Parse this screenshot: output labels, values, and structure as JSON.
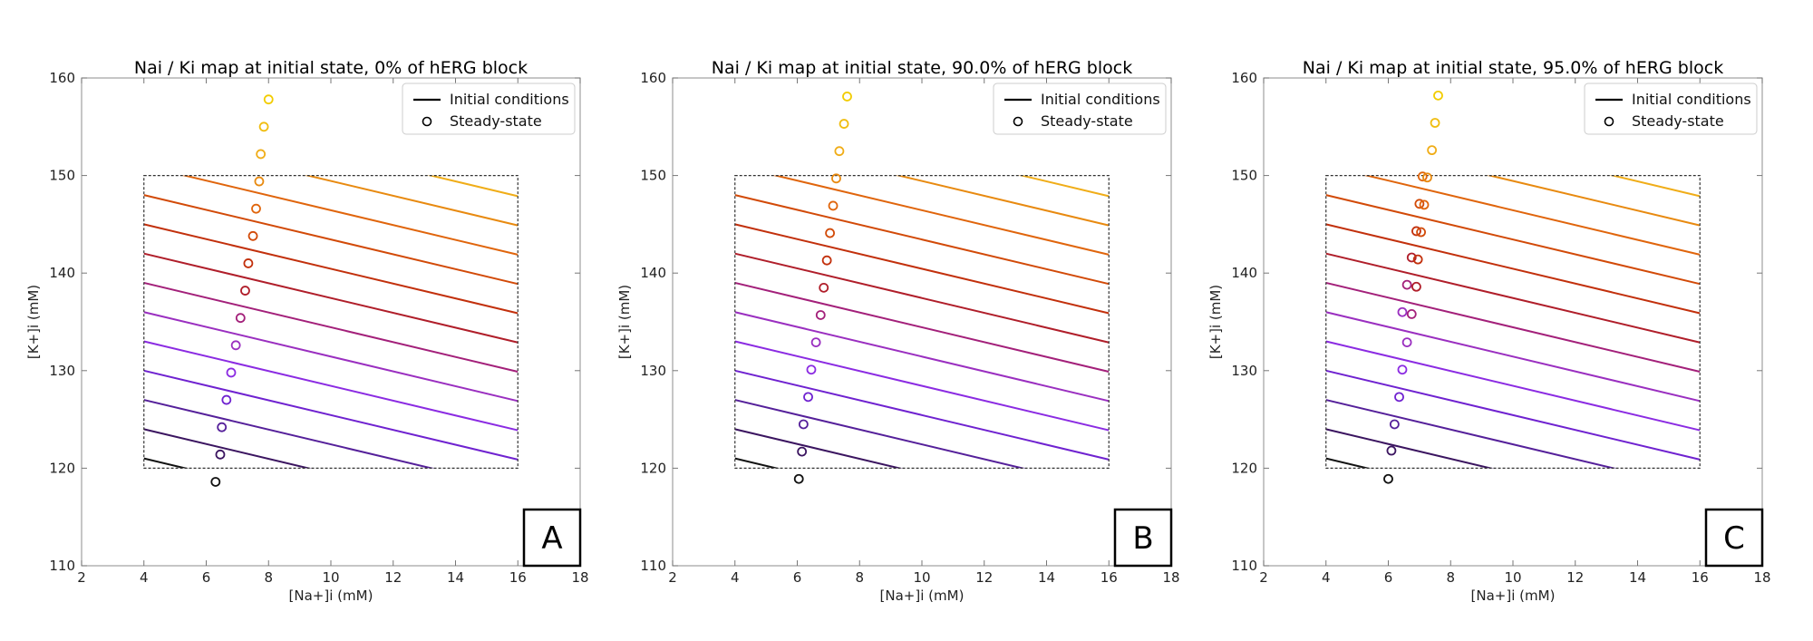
{
  "figure": {
    "description_colors": {
      "contour_palette": [
        "#000000",
        "#3a0f5e",
        "#5a1a9a",
        "#7a1fd6",
        "#8a2be2",
        "#9b2ab0",
        "#a3206f",
        "#b21f1f",
        "#c03010",
        "#d04a0a",
        "#e06010",
        "#e88a10",
        "#f0b020",
        "#f2cc00"
      ],
      "frame": "#999999",
      "rect": "#333333"
    }
  },
  "chart_data": [
    {
      "type": "contour-scatter",
      "panel_letter": "A",
      "title": "Nai / Ki map at initial state, 0% of hERG block",
      "xlabel": "[Na+]i (mM)",
      "ylabel": "[K+]i (mM)",
      "xlim": [
        2,
        18
      ],
      "ylim": [
        110,
        160
      ],
      "xticks": [
        "2",
        "4",
        "6",
        "8",
        "10",
        "12",
        "14",
        "16",
        "18"
      ],
      "yticks": [
        "110",
        "120",
        "130",
        "140",
        "150",
        "160"
      ],
      "legend": [
        "Initial conditions",
        "Steady-state"
      ],
      "initial_region": {
        "x": [
          4,
          16
        ],
        "y": [
          120,
          150
        ]
      },
      "contour_lines": [
        {
          "level": 121,
          "color": "#111111"
        },
        {
          "level": 124,
          "color": "#3b1560"
        },
        {
          "level": 127,
          "color": "#55209a"
        },
        {
          "level": 130,
          "color": "#6f22d0"
        },
        {
          "level": 133,
          "color": "#8b2be2"
        },
        {
          "level": 136,
          "color": "#9a2fc0"
        },
        {
          "level": 139,
          "color": "#a3207a"
        },
        {
          "level": 142,
          "color": "#b01e2a"
        },
        {
          "level": 145,
          "color": "#c2300c"
        },
        {
          "level": 148,
          "color": "#d24a08"
        },
        {
          "level": 151,
          "color": "#e0650c"
        },
        {
          "level": 154,
          "color": "#e88a10"
        },
        {
          "level": 157,
          "color": "#f0ad18"
        },
        {
          "level": 160,
          "color": "#f2cc00"
        }
      ],
      "steady_states": [
        {
          "x": 6.3,
          "y": 118.6,
          "color": "#111111"
        },
        {
          "x": 6.45,
          "y": 121.4,
          "color": "#3b1560"
        },
        {
          "x": 6.5,
          "y": 124.2,
          "color": "#55209a"
        },
        {
          "x": 6.65,
          "y": 127.0,
          "color": "#6f22d0"
        },
        {
          "x": 6.8,
          "y": 129.8,
          "color": "#8b2be2"
        },
        {
          "x": 6.95,
          "y": 132.6,
          "color": "#9a2fc0"
        },
        {
          "x": 7.1,
          "y": 135.4,
          "color": "#a3207a"
        },
        {
          "x": 7.25,
          "y": 138.2,
          "color": "#b01e2a"
        },
        {
          "x": 7.35,
          "y": 141.0,
          "color": "#c2300c"
        },
        {
          "x": 7.5,
          "y": 143.8,
          "color": "#d24a08"
        },
        {
          "x": 7.6,
          "y": 146.6,
          "color": "#e0650c"
        },
        {
          "x": 7.7,
          "y": 149.4,
          "color": "#e88a10"
        },
        {
          "x": 7.75,
          "y": 152.2,
          "color": "#f0ad18"
        },
        {
          "x": 7.85,
          "y": 155.0,
          "color": "#f0bd10"
        },
        {
          "x": 8.0,
          "y": 157.8,
          "color": "#f2cc00"
        }
      ]
    },
    {
      "type": "contour-scatter",
      "panel_letter": "B",
      "title": "Nai / Ki map at initial state, 90.0% of hERG block",
      "xlabel": "[Na+]i (mM)",
      "ylabel": "[K+]i (mM)",
      "xlim": [
        2,
        18
      ],
      "ylim": [
        110,
        160
      ],
      "xticks": [
        "2",
        "4",
        "6",
        "8",
        "10",
        "12",
        "14",
        "16",
        "18"
      ],
      "yticks": [
        "110",
        "120",
        "130",
        "140",
        "150",
        "160"
      ],
      "legend": [
        "Initial conditions",
        "Steady-state"
      ],
      "initial_region": {
        "x": [
          4,
          16
        ],
        "y": [
          120,
          150
        ]
      },
      "contour_lines": [
        {
          "level": 121,
          "color": "#111111"
        },
        {
          "level": 124,
          "color": "#3b1560"
        },
        {
          "level": 127,
          "color": "#55209a"
        },
        {
          "level": 130,
          "color": "#6f22d0"
        },
        {
          "level": 133,
          "color": "#8b2be2"
        },
        {
          "level": 136,
          "color": "#9a2fc0"
        },
        {
          "level": 139,
          "color": "#a3207a"
        },
        {
          "level": 142,
          "color": "#b01e2a"
        },
        {
          "level": 145,
          "color": "#c2300c"
        },
        {
          "level": 148,
          "color": "#d24a08"
        },
        {
          "level": 151,
          "color": "#e0650c"
        },
        {
          "level": 154,
          "color": "#e88a10"
        },
        {
          "level": 157,
          "color": "#f0ad18"
        },
        {
          "level": 160,
          "color": "#f2cc00"
        }
      ],
      "steady_states": [
        {
          "x": 6.05,
          "y": 118.9,
          "color": "#111111"
        },
        {
          "x": 6.15,
          "y": 121.7,
          "color": "#3b1560"
        },
        {
          "x": 6.2,
          "y": 124.5,
          "color": "#55209a"
        },
        {
          "x": 6.35,
          "y": 127.3,
          "color": "#6f22d0"
        },
        {
          "x": 6.45,
          "y": 130.1,
          "color": "#8b2be2"
        },
        {
          "x": 6.6,
          "y": 132.9,
          "color": "#9a2fc0"
        },
        {
          "x": 6.75,
          "y": 135.7,
          "color": "#a3207a"
        },
        {
          "x": 6.85,
          "y": 138.5,
          "color": "#b01e2a"
        },
        {
          "x": 6.95,
          "y": 141.3,
          "color": "#c2300c"
        },
        {
          "x": 7.05,
          "y": 144.1,
          "color": "#d24a08"
        },
        {
          "x": 7.15,
          "y": 146.9,
          "color": "#e0650c"
        },
        {
          "x": 7.25,
          "y": 149.7,
          "color": "#e88a10"
        },
        {
          "x": 7.35,
          "y": 152.5,
          "color": "#f0ad18"
        },
        {
          "x": 7.5,
          "y": 155.3,
          "color": "#f0bd10"
        },
        {
          "x": 7.6,
          "y": 158.1,
          "color": "#f2cc00"
        }
      ]
    },
    {
      "type": "contour-scatter",
      "panel_letter": "C",
      "title": "Nai / Ki map at initial state, 95.0% of hERG block",
      "xlabel": "[Na+]i (mM)",
      "ylabel": "[K+]i (mM)",
      "xlim": [
        2,
        18
      ],
      "ylim": [
        110,
        160
      ],
      "xticks": [
        "2",
        "4",
        "6",
        "8",
        "10",
        "12",
        "14",
        "16",
        "18"
      ],
      "yticks": [
        "110",
        "120",
        "130",
        "140",
        "150",
        "160"
      ],
      "legend": [
        "Initial conditions",
        "Steady-state"
      ],
      "initial_region": {
        "x": [
          4,
          16
        ],
        "y": [
          120,
          150
        ]
      },
      "contour_lines": [
        {
          "level": 121,
          "color": "#111111"
        },
        {
          "level": 124,
          "color": "#3b1560"
        },
        {
          "level": 127,
          "color": "#55209a"
        },
        {
          "level": 130,
          "color": "#6f22d0"
        },
        {
          "level": 133,
          "color": "#8b2be2"
        },
        {
          "level": 136,
          "color": "#9a2fc0"
        },
        {
          "level": 139,
          "color": "#a3207a"
        },
        {
          "level": 142,
          "color": "#b01e2a"
        },
        {
          "level": 145,
          "color": "#c2300c"
        },
        {
          "level": 148,
          "color": "#d24a08"
        },
        {
          "level": 151,
          "color": "#e0650c"
        },
        {
          "level": 154,
          "color": "#e88a10"
        },
        {
          "level": 157,
          "color": "#f0ad18"
        },
        {
          "level": 160,
          "color": "#f2cc00"
        }
      ],
      "steady_states": [
        {
          "x": 6.0,
          "y": 118.9,
          "color": "#111111"
        },
        {
          "x": 6.1,
          "y": 121.8,
          "color": "#3b1560"
        },
        {
          "x": 6.2,
          "y": 124.5,
          "color": "#55209a"
        },
        {
          "x": 6.35,
          "y": 127.3,
          "color": "#6f22d0"
        },
        {
          "x": 6.45,
          "y": 130.1,
          "color": "#8b2be2"
        },
        {
          "x": 6.6,
          "y": 132.9,
          "color": "#9a2fc0"
        },
        {
          "x": 6.45,
          "y": 136.0,
          "color": "#9a2fc0"
        },
        {
          "x": 6.75,
          "y": 135.8,
          "color": "#a3207a"
        },
        {
          "x": 6.6,
          "y": 138.8,
          "color": "#a3207a"
        },
        {
          "x": 6.9,
          "y": 138.6,
          "color": "#b01e2a"
        },
        {
          "x": 6.75,
          "y": 141.6,
          "color": "#b01e2a"
        },
        {
          "x": 6.95,
          "y": 141.4,
          "color": "#c2300c"
        },
        {
          "x": 6.9,
          "y": 144.3,
          "color": "#c2300c"
        },
        {
          "x": 7.05,
          "y": 144.2,
          "color": "#d24a08"
        },
        {
          "x": 7.0,
          "y": 147.1,
          "color": "#d24a08"
        },
        {
          "x": 7.15,
          "y": 147.0,
          "color": "#e0650c"
        },
        {
          "x": 7.1,
          "y": 149.9,
          "color": "#e0650c"
        },
        {
          "x": 7.25,
          "y": 149.8,
          "color": "#e88a10"
        },
        {
          "x": 7.4,
          "y": 152.6,
          "color": "#f0ad18"
        },
        {
          "x": 7.5,
          "y": 155.4,
          "color": "#f0bd10"
        },
        {
          "x": 7.6,
          "y": 158.2,
          "color": "#f2cc00"
        }
      ]
    }
  ]
}
